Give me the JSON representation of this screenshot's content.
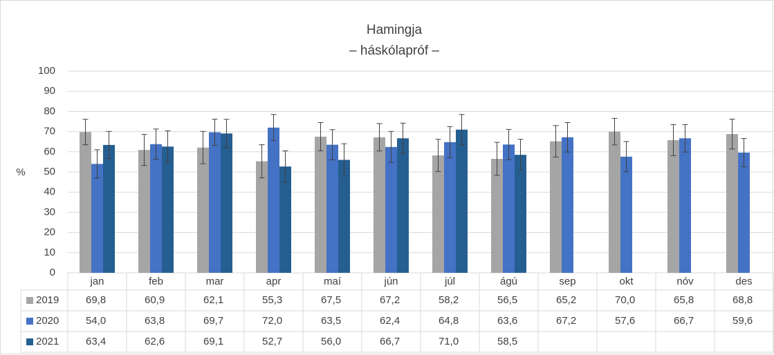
{
  "chart_data": {
    "type": "bar",
    "title": "Hamingja",
    "subtitle": "– háskólapróf –",
    "y_label": "%",
    "categories": [
      "jan",
      "feb",
      "mar",
      "apr",
      "maí",
      "jún",
      "júl",
      "ágú",
      "sep",
      "okt",
      "nóv",
      "des"
    ],
    "ylim": [
      0,
      100
    ],
    "yticks": [
      0,
      10,
      20,
      30,
      40,
      50,
      60,
      70,
      80,
      90,
      100
    ],
    "grid": true,
    "series": [
      {
        "name": "2019",
        "color": "#a5a5a5",
        "values": [
          69.8,
          60.9,
          62.1,
          55.3,
          67.5,
          67.2,
          58.2,
          56.5,
          65.2,
          70.0,
          65.8,
          68.8
        ],
        "value_labels": [
          "69,8",
          "60,9",
          "62,1",
          "55,3",
          "67,5",
          "67,2",
          "58,2",
          "56,5",
          "65,2",
          "70,0",
          "65,8",
          "68,8"
        ],
        "errors": [
          6.3,
          7.7,
          8,
          8.2,
          7,
          6.8,
          8,
          8.2,
          7.8,
          6.6,
          7.7,
          7.4
        ]
      },
      {
        "name": "2020",
        "color": "#4472c4",
        "values": [
          54.0,
          63.8,
          69.7,
          72.0,
          63.5,
          62.4,
          64.8,
          63.6,
          67.2,
          57.6,
          66.7,
          59.6
        ],
        "value_labels": [
          "54,0",
          "63,8",
          "69,7",
          "72,0",
          "63,5",
          "62,4",
          "64,8",
          "63,6",
          "67,2",
          "57,6",
          "66,7",
          "59,6"
        ],
        "errors": [
          7,
          7.5,
          6.5,
          6.5,
          7.5,
          7.7,
          7.7,
          7.5,
          7.3,
          7.5,
          6.8,
          7
        ]
      },
      {
        "name": "2021",
        "color": "#255e91",
        "values": [
          63.4,
          62.6,
          69.1,
          52.7,
          56.0,
          66.7,
          71.0,
          58.5,
          null,
          null,
          null,
          null
        ],
        "value_labels": [
          "63,4",
          "62,6",
          "69,1",
          "52,7",
          "56,0",
          "66,7",
          "71,0",
          "58,5",
          null,
          null,
          null,
          null
        ],
        "errors": [
          6.7,
          7.8,
          7,
          7.8,
          8,
          7.5,
          7.5,
          7.7,
          null,
          null,
          null,
          null
        ]
      }
    ]
  }
}
